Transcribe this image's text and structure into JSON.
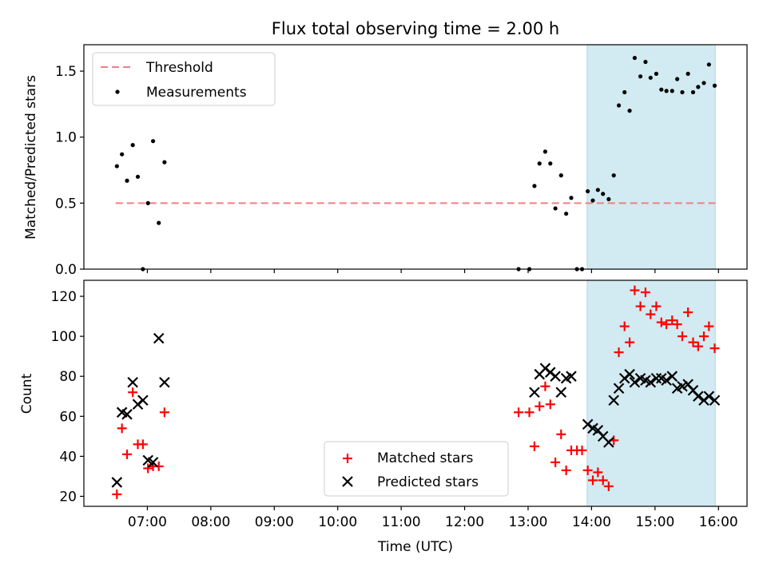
{
  "figure": {
    "title": "Flux total observing time = 2.00 h",
    "xlabel": "Time (UTC)",
    "xticks": [
      "07:00",
      "08:00",
      "09:00",
      "10:00",
      "11:00",
      "12:00",
      "13:00",
      "14:00",
      "15:00",
      "16:00"
    ]
  },
  "chart_data": [
    {
      "type": "scatter",
      "ylabel": "Matched/Predicted stars",
      "ylim": [
        0,
        1.7
      ],
      "yticks": [
        "0.0",
        "0.5",
        "1.0",
        "1.5"
      ],
      "xlim_hours": [
        6.0,
        16.45
      ],
      "shaded_region": {
        "from": "13.93",
        "to": "15.95",
        "color": "#add8e6"
      },
      "legend": {
        "placement": "top-left",
        "entries": [
          "Threshold",
          "Measurements"
        ]
      },
      "threshold": {
        "name": "Threshold",
        "value": 0.5,
        "x_from": 6.5,
        "x_to": 15.95,
        "color": "#f08080"
      },
      "series": [
        {
          "name": "Measurements",
          "color": "#000000",
          "x": [
            6.52,
            6.6,
            6.68,
            6.77,
            6.85,
            6.93,
            7.01,
            7.09,
            7.18,
            7.27,
            12.85,
            13.02,
            13.1,
            13.18,
            13.27,
            13.35,
            13.43,
            13.52,
            13.6,
            13.68,
            13.77,
            13.85,
            13.94,
            14.02,
            14.1,
            14.18,
            14.27,
            14.35,
            14.43,
            14.52,
            14.6,
            14.68,
            14.77,
            14.85,
            14.93,
            15.02,
            15.1,
            15.18,
            15.27,
            15.35,
            15.43,
            15.52,
            15.6,
            15.68,
            15.77,
            15.85,
            15.94
          ],
          "y": [
            0.78,
            0.87,
            0.67,
            0.94,
            0.7,
            0.0,
            0.5,
            0.97,
            0.35,
            0.81,
            0.0,
            0.0,
            0.63,
            0.8,
            0.89,
            0.8,
            0.46,
            0.71,
            0.42,
            0.54,
            0.0,
            0.0,
            0.59,
            0.52,
            0.6,
            0.57,
            0.53,
            0.71,
            1.24,
            1.34,
            1.2,
            1.6,
            1.46,
            1.57,
            1.45,
            1.48,
            1.36,
            1.35,
            1.35,
            1.44,
            1.34,
            1.48,
            1.34,
            1.38,
            1.41,
            1.55,
            1.39
          ]
        }
      ]
    },
    {
      "type": "scatter",
      "ylabel": "Count",
      "ylim": [
        15,
        128
      ],
      "yticks": [
        "20",
        "40",
        "60",
        "80",
        "100",
        "120"
      ],
      "xlim_hours": [
        6.0,
        16.45
      ],
      "shaded_region": {
        "from": "13.93",
        "to": "15.95",
        "color": "#add8e6"
      },
      "legend": {
        "placement": "lower-center",
        "entries": [
          "Matched stars",
          "Predicted stars"
        ]
      },
      "series": [
        {
          "name": "Matched stars",
          "color": "#ff0000",
          "marker": "plus",
          "x": [
            6.52,
            6.6,
            6.68,
            6.77,
            6.85,
            6.93,
            7.01,
            7.09,
            7.18,
            7.27,
            12.85,
            13.02,
            13.1,
            13.18,
            13.27,
            13.35,
            13.43,
            13.52,
            13.6,
            13.68,
            13.77,
            13.85,
            13.94,
            14.02,
            14.1,
            14.18,
            14.27,
            14.35,
            14.43,
            14.52,
            14.6,
            14.68,
            14.77,
            14.85,
            14.93,
            15.02,
            15.1,
            15.18,
            15.27,
            15.35,
            15.43,
            15.52,
            15.6,
            15.68,
            15.77,
            15.85,
            15.94
          ],
          "y": [
            21,
            54,
            41,
            72,
            46,
            46,
            34,
            35,
            35,
            62,
            62,
            62,
            45,
            65,
            75,
            66,
            37,
            51,
            33,
            43,
            43,
            43,
            33,
            28,
            32,
            28,
            25,
            48,
            92,
            105,
            97,
            123,
            115,
            122,
            111,
            115,
            107,
            106,
            108,
            106,
            100,
            112,
            97,
            95,
            100,
            105,
            94
          ]
        },
        {
          "name": "Predicted stars",
          "color": "#000000",
          "marker": "cross",
          "x": [
            6.52,
            6.6,
            6.68,
            6.77,
            6.85,
            6.93,
            7.01,
            7.09,
            7.18,
            7.27,
            13.1,
            13.18,
            13.27,
            13.35,
            13.43,
            13.52,
            13.6,
            13.68,
            13.94,
            14.02,
            14.1,
            14.18,
            14.27,
            14.35,
            14.43,
            14.52,
            14.6,
            14.68,
            14.77,
            14.85,
            14.93,
            15.02,
            15.1,
            15.18,
            15.27,
            15.35,
            15.43,
            15.52,
            15.6,
            15.68,
            15.77,
            15.85,
            15.94
          ],
          "y": [
            27,
            62,
            61,
            77,
            66,
            68,
            38,
            37,
            99,
            77,
            72,
            81,
            84,
            82,
            80,
            72,
            79,
            80,
            56,
            54,
            53,
            50,
            47,
            68,
            74,
            79,
            81,
            77,
            79,
            78,
            77,
            79,
            79,
            78,
            80,
            74,
            75,
            76,
            73,
            70,
            68,
            70,
            68
          ]
        }
      ]
    }
  ]
}
